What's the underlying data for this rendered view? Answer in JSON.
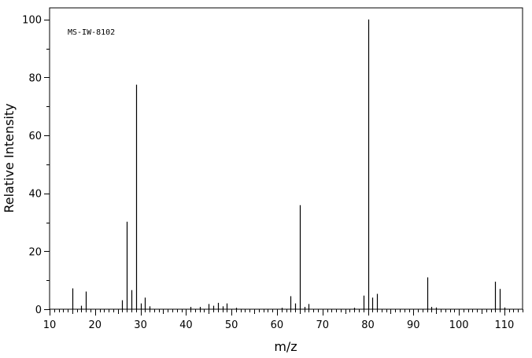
{
  "chart_data": {
    "type": "bar",
    "annotation": "MS-IW-8102",
    "xlabel": "m/z",
    "ylabel": "Relative Intensity",
    "xlim": [
      10,
      114
    ],
    "ylim": [
      0,
      104
    ],
    "x_ticks": [
      10,
      20,
      30,
      40,
      50,
      60,
      70,
      80,
      90,
      100,
      110
    ],
    "y_ticks": [
      0,
      20,
      40,
      60,
      80,
      100
    ],
    "grid": false,
    "peaks": [
      {
        "mz": 15,
        "intensity": 7.2
      },
      {
        "mz": 17,
        "intensity": 1.2
      },
      {
        "mz": 18,
        "intensity": 6.1
      },
      {
        "mz": 26,
        "intensity": 3.1
      },
      {
        "mz": 27,
        "intensity": 30.2
      },
      {
        "mz": 28,
        "intensity": 6.6
      },
      {
        "mz": 29,
        "intensity": 77.5
      },
      {
        "mz": 30,
        "intensity": 2.0
      },
      {
        "mz": 31,
        "intensity": 4.0
      },
      {
        "mz": 32,
        "intensity": 1.0
      },
      {
        "mz": 41,
        "intensity": 0.8
      },
      {
        "mz": 43,
        "intensity": 0.8
      },
      {
        "mz": 45,
        "intensity": 1.8
      },
      {
        "mz": 46,
        "intensity": 1.2
      },
      {
        "mz": 47,
        "intensity": 2.2
      },
      {
        "mz": 48,
        "intensity": 1.0
      },
      {
        "mz": 49,
        "intensity": 2.0
      },
      {
        "mz": 51,
        "intensity": 0.5
      },
      {
        "mz": 61,
        "intensity": 0.5
      },
      {
        "mz": 63,
        "intensity": 4.5
      },
      {
        "mz": 64,
        "intensity": 2.0
      },
      {
        "mz": 65,
        "intensity": 35.9
      },
      {
        "mz": 66,
        "intensity": 0.8
      },
      {
        "mz": 67,
        "intensity": 1.8
      },
      {
        "mz": 77,
        "intensity": 0.5
      },
      {
        "mz": 79,
        "intensity": 4.7
      },
      {
        "mz": 80,
        "intensity": 100
      },
      {
        "mz": 81,
        "intensity": 4.0
      },
      {
        "mz": 82,
        "intensity": 5.3
      },
      {
        "mz": 93,
        "intensity": 11.0
      },
      {
        "mz": 94,
        "intensity": 0.8
      },
      {
        "mz": 95,
        "intensity": 0.6
      },
      {
        "mz": 108,
        "intensity": 9.5
      },
      {
        "mz": 109,
        "intensity": 7.0
      },
      {
        "mz": 110,
        "intensity": 0.6
      }
    ]
  }
}
